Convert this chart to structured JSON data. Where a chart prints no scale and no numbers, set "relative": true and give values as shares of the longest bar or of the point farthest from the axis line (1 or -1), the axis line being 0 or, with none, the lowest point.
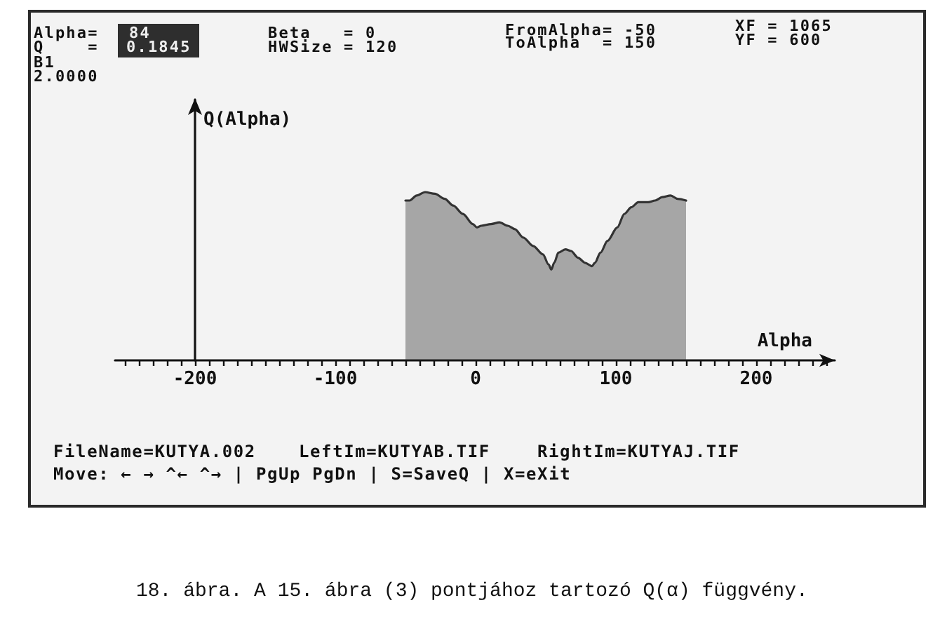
{
  "chart_data": {
    "type": "area",
    "relative": true,
    "marker": "none",
    "color": "#333333",
    "xlabel": "Alpha",
    "ylabel": "Q(Alpha)",
    "xlim": [
      -257,
      256
    ],
    "xticks": [
      {
        "value": -250,
        "label": null
      },
      {
        "value": -240,
        "label": null
      },
      {
        "value": -230,
        "label": null
      },
      {
        "value": -220,
        "label": null
      },
      {
        "value": -210,
        "label": null
      },
      -200,
      {
        "value": -190,
        "label": null
      },
      {
        "value": -180,
        "label": null
      },
      {
        "value": -170,
        "label": null
      },
      {
        "value": -160,
        "label": null
      },
      {
        "value": -150,
        "label": null
      },
      {
        "value": -140,
        "label": null
      },
      {
        "value": -130,
        "label": null
      },
      {
        "value": -120,
        "label": null
      },
      {
        "value": -110,
        "label": null
      },
      -100,
      {
        "value": -90,
        "label": null
      },
      {
        "value": -80,
        "label": null
      },
      {
        "value": -70,
        "label": null
      },
      {
        "value": -60,
        "label": null
      },
      {
        "value": -50,
        "label": null
      },
      {
        "value": -40,
        "label": null
      },
      {
        "value": -30,
        "label": null
      },
      {
        "value": -20,
        "label": null
      },
      {
        "value": -10,
        "label": null
      },
      0,
      {
        "value": 10,
        "label": null
      },
      {
        "value": 20,
        "label": null
      },
      {
        "value": 30,
        "label": null
      },
      {
        "value": 40,
        "label": null
      },
      {
        "value": 50,
        "label": null
      },
      {
        "value": 60,
        "label": null
      },
      {
        "value": 70,
        "label": null
      },
      {
        "value": 80,
        "label": null
      },
      {
        "value": 90,
        "label": null
      },
      100,
      {
        "value": 110,
        "label": null
      },
      {
        "value": 120,
        "label": null
      },
      {
        "value": 130,
        "label": null
      },
      {
        "value": 140,
        "label": null
      },
      {
        "value": 150,
        "label": null
      },
      {
        "value": 160,
        "label": null
      },
      {
        "value": 170,
        "label": null
      },
      {
        "value": 180,
        "label": null
      },
      {
        "value": 190,
        "label": null
      },
      200,
      {
        "value": 210,
        "label": null
      },
      {
        "value": 220,
        "label": null
      },
      {
        "value": 230,
        "label": null
      },
      {
        "value": 240,
        "label": null
      },
      {
        "value": 250,
        "label": null
      }
    ],
    "x": [
      -50,
      -47,
      -42,
      -36,
      -29,
      -22,
      -16,
      -9,
      -2,
      1,
      4,
      11,
      17,
      23,
      28,
      34,
      41,
      48,
      52,
      54,
      56,
      59,
      64,
      68,
      73,
      78,
      83,
      85,
      89,
      94,
      101,
      106,
      111,
      116,
      123,
      128,
      133,
      139,
      144,
      150
    ],
    "values": [
      0.95,
      0.95,
      0.98,
      1,
      0.99,
      0.96,
      0.92,
      0.87,
      0.81,
      0.79,
      0.8,
      0.81,
      0.82,
      0.8,
      0.78,
      0.73,
      0.68,
      0.63,
      0.57,
      0.54,
      0.58,
      0.64,
      0.66,
      0.65,
      0.61,
      0.58,
      0.56,
      0.58,
      0.64,
      0.71,
      0.79,
      0.87,
      0.91,
      0.94,
      0.94,
      0.95,
      0.97,
      0.98,
      0.96,
      0.95
    ],
    "annotations": [
      "Alpha=",
      "84",
      "Q    =",
      "0.1845",
      "B1",
      "2.0000",
      "Beta   = 0",
      "HWSize = 120",
      "FromAlpha= -50",
      "ToAlpha  = 150",
      "XF = 1065",
      "YF = 600",
      "FileName=KUTYA.002",
      "LeftIm=KUTYAB.TIF",
      "RightIm=KUTYAJ.TIF",
      "Move: ← → ^← ^→ | PgUp PgDn | S=SaveQ | X=eXit",
      "18. ábra. A 15. ábra (3) pontjához tartozó Q(α) függvény."
    ]
  }
}
